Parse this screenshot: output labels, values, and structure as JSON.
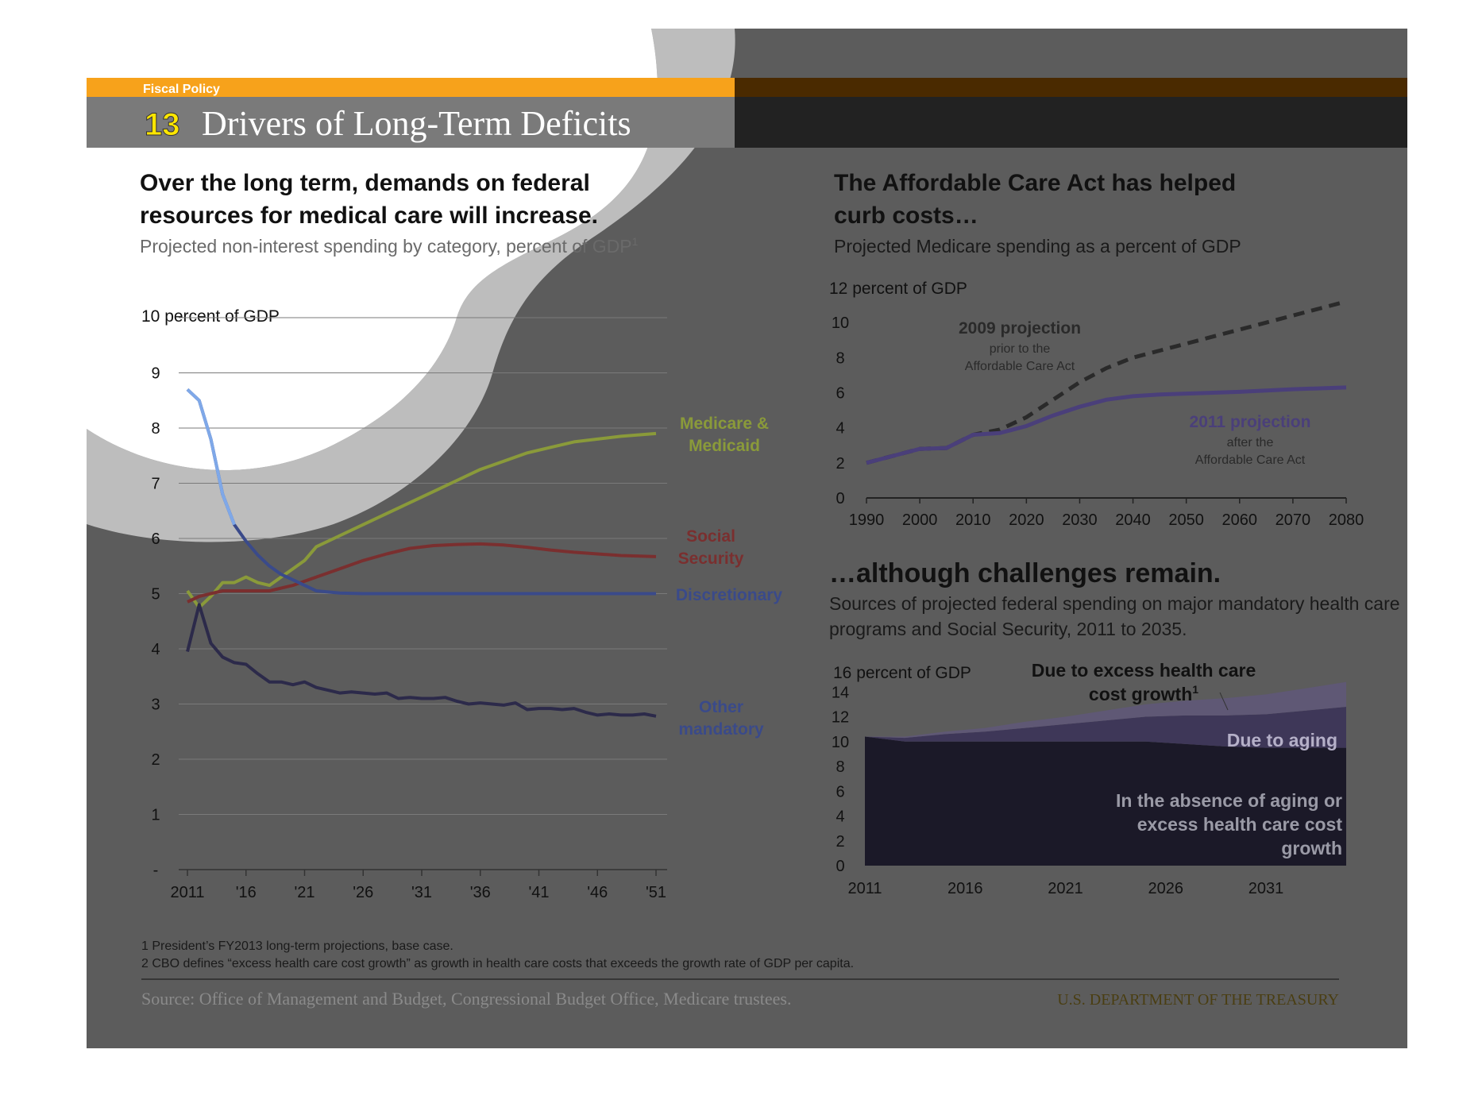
{
  "header": {
    "section_label": "Fiscal Policy",
    "number": "13",
    "title": "Drivers of Long-Term Deficits"
  },
  "left_panel": {
    "headline_line1": "Over the long term, demands on federal",
    "headline_line2": "resources for medical care will increase.",
    "subtitle": "Projected non-interest spending by category, percent of GDP",
    "subtitle_sup": "1",
    "y_unit_label": "10 percent of GDP"
  },
  "right_top_panel": {
    "headline_line1": "The Affordable Care Act has helped",
    "headline_line2": "curb costs…",
    "subtitle": "Projected Medicare spending as a percent of GDP",
    "y_unit_label": "12 percent of GDP",
    "annotation_2009_title": "2009 projection",
    "annotation_2009_line1": "prior to the",
    "annotation_2009_line2": "Affordable Care Act",
    "annotation_2011_title": "2011 projection",
    "annotation_2011_line1": "after the",
    "annotation_2011_line2": "Affordable Care Act"
  },
  "right_bottom_panel": {
    "headline": "…although challenges remain.",
    "subtitle_line1": "Sources of projected federal spending on major mandatory health care",
    "subtitle_line2": "programs and Social Security, 2011 to 2035.",
    "y_unit_label": "16 percent of GDP",
    "label_excess_line1": "Due to excess  health care",
    "label_excess_line2": "cost growth",
    "label_excess_sup": "1",
    "label_aging": "Due to aging",
    "label_base_line1": "In the absence of aging or",
    "label_base_line2": "excess health care cost",
    "label_base_line3": "growth"
  },
  "footnotes": {
    "note1": "1 President’s FY2013 long-term projections, base case.",
    "note2": "2 CBO defines “excess health care cost growth” as growth in health care costs that exceeds the growth rate of GDP per capita.",
    "source": "Source: Office of Management and Budget, Congressional Budget Office, Medicare trustees.",
    "agency": "U.S. DEPARTMENT OF THE TREASURY"
  },
  "colors": {
    "banner_orange": "#f7a21b",
    "number_yellow": "#ffe600",
    "medicare_green": "#8a9a3a",
    "social_security_red": "#7a2f2f",
    "discretionary_blue": "#3a4a8a",
    "other_mandatory_purple": "#2c2a4a",
    "projection_2011_purple": "#4a3f7a"
  },
  "chart_data": [
    {
      "type": "line",
      "x_tick_labels": [
        "2011",
        "'16",
        "'21",
        "'26",
        "'31",
        "'36",
        "'41",
        "'46",
        "'51"
      ],
      "x_range": [
        2011,
        2051
      ],
      "ylim": [
        0,
        10
      ],
      "y_tick_labels": [
        "-",
        "1",
        "2",
        "3",
        "4",
        "5",
        "6",
        "7",
        "8",
        "9"
      ],
      "ylabel": "10 percent of GDP",
      "series": [
        {
          "name": "Medicare & Medicaid",
          "points": [
            [
              2011,
              5.05
            ],
            [
              2012,
              4.75
            ],
            [
              2013,
              4.95
            ],
            [
              2014,
              5.2
            ],
            [
              2015,
              5.2
            ],
            [
              2016,
              5.3
            ],
            [
              2017,
              5.2
            ],
            [
              2018,
              5.15
            ],
            [
              2019,
              5.3
            ],
            [
              2020,
              5.45
            ],
            [
              2021,
              5.6
            ],
            [
              2022,
              5.85
            ],
            [
              2024,
              6.05
            ],
            [
              2026,
              6.25
            ],
            [
              2028,
              6.45
            ],
            [
              2030,
              6.65
            ],
            [
              2032,
              6.85
            ],
            [
              2034,
              7.05
            ],
            [
              2036,
              7.25
            ],
            [
              2038,
              7.4
            ],
            [
              2040,
              7.55
            ],
            [
              2042,
              7.65
            ],
            [
              2044,
              7.75
            ],
            [
              2046,
              7.8
            ],
            [
              2048,
              7.85
            ],
            [
              2051,
              7.9
            ]
          ]
        },
        {
          "name": "Social Security",
          "points": [
            [
              2011,
              4.85
            ],
            [
              2012,
              4.95
            ],
            [
              2014,
              5.05
            ],
            [
              2016,
              5.05
            ],
            [
              2018,
              5.05
            ],
            [
              2020,
              5.15
            ],
            [
              2022,
              5.3
            ],
            [
              2024,
              5.45
            ],
            [
              2026,
              5.6
            ],
            [
              2028,
              5.72
            ],
            [
              2030,
              5.82
            ],
            [
              2032,
              5.87
            ],
            [
              2034,
              5.89
            ],
            [
              2036,
              5.9
            ],
            [
              2038,
              5.88
            ],
            [
              2040,
              5.84
            ],
            [
              2042,
              5.79
            ],
            [
              2044,
              5.75
            ],
            [
              2046,
              5.72
            ],
            [
              2048,
              5.69
            ],
            [
              2051,
              5.67
            ]
          ]
        },
        {
          "name": "Discretionary",
          "points": [
            [
              2011,
              8.7
            ],
            [
              2012,
              8.5
            ],
            [
              2013,
              7.8
            ],
            [
              2014,
              6.8
            ],
            [
              2015,
              6.25
            ],
            [
              2016,
              5.95
            ],
            [
              2017,
              5.7
            ],
            [
              2018,
              5.5
            ],
            [
              2019,
              5.35
            ],
            [
              2020,
              5.25
            ],
            [
              2021,
              5.15
            ],
            [
              2022,
              5.05
            ],
            [
              2024,
              5.01
            ],
            [
              2026,
              5.0
            ],
            [
              2030,
              5.0
            ],
            [
              2040,
              5.0
            ],
            [
              2051,
              5.0
            ]
          ]
        },
        {
          "name": "Other mandatory",
          "points": [
            [
              2011,
              3.95
            ],
            [
              2012,
              4.8
            ],
            [
              2013,
              4.1
            ],
            [
              2014,
              3.85
            ],
            [
              2015,
              3.75
            ],
            [
              2016,
              3.72
            ],
            [
              2017,
              3.55
            ],
            [
              2018,
              3.4
            ],
            [
              2019,
              3.4
            ],
            [
              2020,
              3.35
            ],
            [
              2021,
              3.4
            ],
            [
              2022,
              3.3
            ],
            [
              2023,
              3.25
            ],
            [
              2024,
              3.2
            ],
            [
              2025,
              3.22
            ],
            [
              2026,
              3.2
            ],
            [
              2027,
              3.18
            ],
            [
              2028,
              3.2
            ],
            [
              2029,
              3.1
            ],
            [
              2030,
              3.12
            ],
            [
              2031,
              3.1
            ],
            [
              2032,
              3.1
            ],
            [
              2033,
              3.12
            ],
            [
              2034,
              3.05
            ],
            [
              2035,
              3.0
            ],
            [
              2036,
              3.02
            ],
            [
              2037,
              3.0
            ],
            [
              2038,
              2.98
            ],
            [
              2039,
              3.02
            ],
            [
              2040,
              2.9
            ],
            [
              2041,
              2.92
            ],
            [
              2042,
              2.92
            ],
            [
              2043,
              2.9
            ],
            [
              2044,
              2.92
            ],
            [
              2045,
              2.85
            ],
            [
              2046,
              2.8
            ],
            [
              2047,
              2.82
            ],
            [
              2048,
              2.8
            ],
            [
              2049,
              2.8
            ],
            [
              2050,
              2.82
            ],
            [
              2051,
              2.78
            ]
          ]
        }
      ],
      "series_labels": [
        {
          "series": "Medicare & Medicaid",
          "line1": "Medicare &",
          "line2": "Medicaid"
        },
        {
          "series": "Social Security",
          "line1": "Social",
          "line2": "Security"
        },
        {
          "series": "Discretionary",
          "line1": "Discretionary",
          "line2": ""
        },
        {
          "series": "Other mandatory",
          "line1": "Other",
          "line2": "mandatory"
        }
      ],
      "grid": true
    },
    {
      "type": "line",
      "x_tick_labels": [
        "1990",
        "2000",
        "2010",
        "2020",
        "2030",
        "2040",
        "2050",
        "2060",
        "2070",
        "2080"
      ],
      "x_range": [
        1990,
        2080
      ],
      "ylim": [
        0,
        12
      ],
      "y_tick_labels": [
        "0",
        "2",
        "4",
        "6",
        "8",
        "10"
      ],
      "ylabel": "12 percent of GDP",
      "series": [
        {
          "name": "2009 projection",
          "style": "dashed",
          "points": [
            [
              1990,
              2.0
            ],
            [
              1995,
              2.4
            ],
            [
              2000,
              2.8
            ],
            [
              2005,
              2.85
            ],
            [
              2010,
              3.6
            ],
            [
              2015,
              3.9
            ],
            [
              2020,
              4.6
            ],
            [
              2025,
              5.6
            ],
            [
              2030,
              6.6
            ],
            [
              2035,
              7.4
            ],
            [
              2040,
              8.0
            ],
            [
              2045,
              8.4
            ],
            [
              2050,
              8.8
            ],
            [
              2055,
              9.2
            ],
            [
              2060,
              9.6
            ],
            [
              2065,
              10.0
            ],
            [
              2070,
              10.4
            ],
            [
              2075,
              10.8
            ],
            [
              2080,
              11.2
            ]
          ]
        },
        {
          "name": "2011 projection",
          "style": "solid",
          "points": [
            [
              1990,
              2.0
            ],
            [
              1995,
              2.4
            ],
            [
              2000,
              2.8
            ],
            [
              2005,
              2.85
            ],
            [
              2010,
              3.6
            ],
            [
              2015,
              3.7
            ],
            [
              2020,
              4.1
            ],
            [
              2025,
              4.7
            ],
            [
              2030,
              5.2
            ],
            [
              2035,
              5.6
            ],
            [
              2040,
              5.8
            ],
            [
              2045,
              5.9
            ],
            [
              2050,
              5.95
            ],
            [
              2060,
              6.05
            ],
            [
              2070,
              6.2
            ],
            [
              2080,
              6.3
            ]
          ]
        }
      ]
    },
    {
      "type": "area",
      "x_tick_labels": [
        "2011",
        "2016",
        "2021",
        "2026",
        "2031"
      ],
      "x_range": [
        2011,
        2035
      ],
      "ylim": [
        0,
        16
      ],
      "y_tick_labels": [
        "0",
        "2",
        "4",
        "6",
        "8",
        "10",
        "12",
        "14"
      ],
      "ylabel": "16 percent of GDP",
      "x": [
        2011,
        2013,
        2015,
        2017,
        2019,
        2021,
        2023,
        2025,
        2027,
        2029,
        2031,
        2033,
        2035
      ],
      "series": [
        {
          "name": "In the absence of aging or excess health care cost growth",
          "values": [
            10.4,
            10.0,
            10.0,
            10.0,
            10.0,
            10.0,
            10.0,
            10.0,
            9.8,
            9.6,
            9.5,
            9.5,
            9.5
          ]
        },
        {
          "name": "Due to aging",
          "values": [
            0.0,
            0.3,
            0.6,
            0.8,
            1.1,
            1.4,
            1.7,
            2.0,
            2.3,
            2.5,
            2.7,
            3.0,
            3.3
          ]
        },
        {
          "name": "Due to excess health care cost growth",
          "values": [
            0.0,
            0.1,
            0.2,
            0.3,
            0.5,
            0.6,
            0.8,
            1.0,
            1.2,
            1.4,
            1.6,
            1.8,
            2.0
          ]
        }
      ]
    }
  ]
}
